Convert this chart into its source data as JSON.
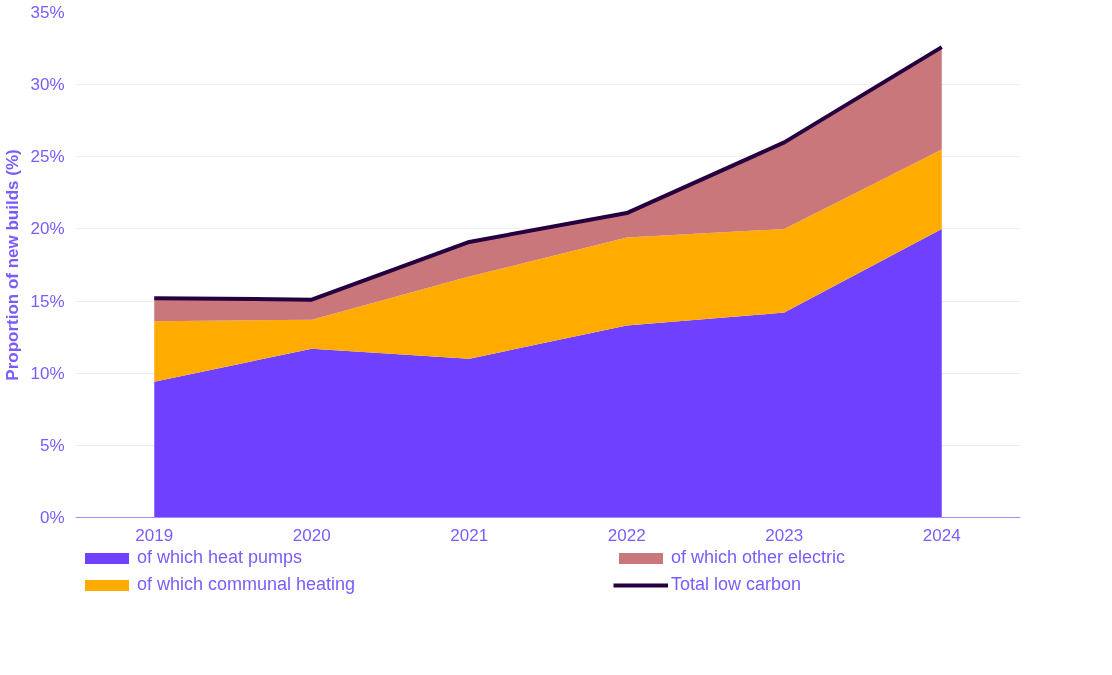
{
  "chart_data": {
    "type": "area",
    "stacked": true,
    "ylabel": "Proportion of new builds (%)",
    "categories": [
      "2019",
      "2020",
      "2021",
      "2022",
      "2023",
      "2024"
    ],
    "series": [
      {
        "name": "of which heat pumps",
        "color": "#7040ff",
        "values": [
          9.4,
          11.7,
          11.0,
          13.3,
          14.2,
          20.0
        ]
      },
      {
        "name": "of which communal heating",
        "color": "#ffab00",
        "values": [
          4.2,
          2.0,
          5.7,
          6.1,
          5.8,
          5.5
        ]
      },
      {
        "name": "of which other electric",
        "color": "#c9777b",
        "values": [
          1.6,
          1.4,
          2.4,
          1.7,
          6.0,
          7.1
        ]
      },
      {
        "name": "Total low carbon",
        "color": "#250040",
        "type": "line",
        "values": [
          15.2,
          15.1,
          19.1,
          21.1,
          26.0,
          32.6
        ]
      }
    ],
    "ylim": [
      0,
      35
    ],
    "yticks": [
      {
        "value": 0,
        "label": "0%"
      },
      {
        "value": 5,
        "label": "5%"
      },
      {
        "value": 10,
        "label": "10%"
      },
      {
        "value": 15,
        "label": "15%"
      },
      {
        "value": 20,
        "label": "20%"
      },
      {
        "value": 25,
        "label": "25%"
      },
      {
        "value": 30,
        "label": "30%"
      },
      {
        "value": 35,
        "label": "35%"
      }
    ],
    "grid": "y",
    "legend": "bottom"
  }
}
